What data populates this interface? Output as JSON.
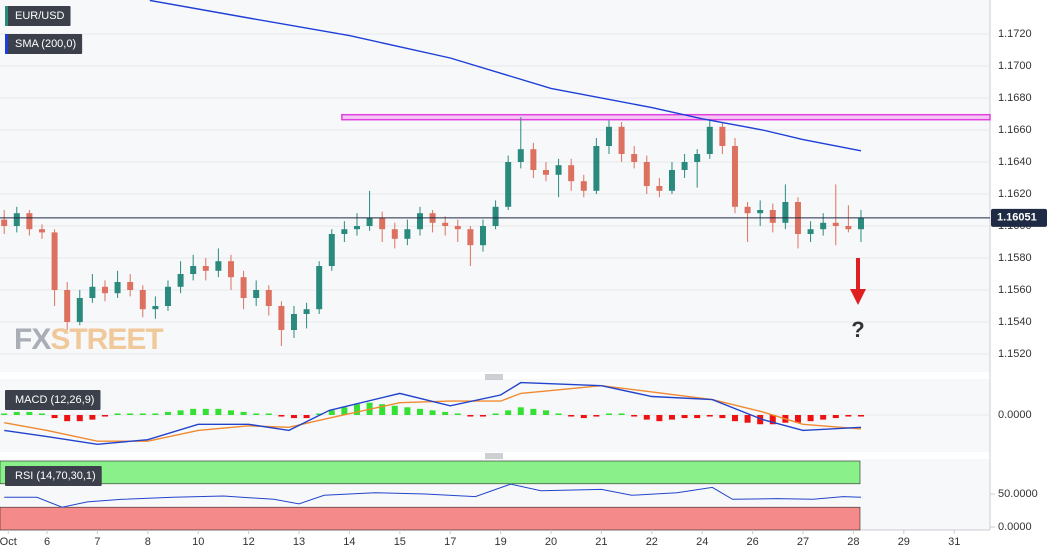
{
  "chart_data": [
    {
      "type": "candlestick",
      "name": "EUR/USD",
      "up_color": "#2b8a7e",
      "down_color": "#dd7160",
      "x": [
        -0.85,
        -0.6,
        -0.35,
        -0.1,
        0.15,
        0.4,
        0.65,
        0.9,
        1.15,
        1.4,
        1.65,
        1.9,
        2.15,
        2.4,
        2.65,
        2.9,
        3.15,
        3.4,
        3.65,
        3.9,
        4.15,
        4.4,
        4.65,
        4.9,
        5.15,
        5.4,
        5.65,
        5.9,
        6.15,
        6.4,
        6.65,
        6.9,
        7.15,
        7.4,
        7.65,
        7.9,
        8.15,
        8.4,
        8.65,
        8.9,
        9.15,
        9.4,
        9.65,
        9.9,
        10.15,
        10.4,
        10.65,
        10.9,
        11.15,
        11.4,
        11.65,
        11.9,
        12.15,
        12.4,
        12.65,
        12.9,
        13.15,
        13.4,
        13.65,
        13.9,
        14.15,
        14.4,
        14.65,
        14.9,
        15.15,
        15.4,
        15.65,
        15.9,
        16.15
      ],
      "open": [
        1.1604,
        1.16,
        1.1608,
        1.1598,
        1.1596,
        1.156,
        1.154,
        1.1555,
        1.1562,
        1.1558,
        1.1565,
        1.156,
        1.1548,
        1.155,
        1.1562,
        1.157,
        1.1575,
        1.1572,
        1.1578,
        1.1568,
        1.1555,
        1.156,
        1.155,
        1.1535,
        1.1545,
        1.1548,
        1.1575,
        1.1595,
        1.1598,
        1.16,
        1.1605,
        1.1598,
        1.1592,
        1.1598,
        1.1608,
        1.1602,
        1.16,
        1.1598,
        1.1588,
        1.16,
        1.1612,
        1.164,
        1.1648,
        1.1635,
        1.1632,
        1.1638,
        1.1628,
        1.1622,
        1.165,
        1.1662,
        1.1645,
        1.164,
        1.1625,
        1.1622,
        1.1635,
        1.164,
        1.1645,
        1.1662,
        1.165,
        1.1612,
        1.1608,
        1.161,
        1.1602,
        1.1615,
        1.1595,
        1.1598,
        1.1602,
        1.16,
        1.1598
      ],
      "high": [
        1.161,
        1.1612,
        1.161,
        1.1601,
        1.1598,
        1.1565,
        1.156,
        1.157,
        1.1566,
        1.1572,
        1.157,
        1.1563,
        1.1556,
        1.1566,
        1.1578,
        1.1582,
        1.158,
        1.1586,
        1.1582,
        1.1572,
        1.1566,
        1.1563,
        1.1553,
        1.155,
        1.1552,
        1.1578,
        1.1598,
        1.1603,
        1.1608,
        1.1622,
        1.1609,
        1.1602,
        1.1604,
        1.1612,
        1.161,
        1.1606,
        1.1604,
        1.16,
        1.1604,
        1.1616,
        1.1644,
        1.1668,
        1.1652,
        1.164,
        1.1642,
        1.1642,
        1.1632,
        1.1655,
        1.1666,
        1.1665,
        1.165,
        1.1644,
        1.163,
        1.164,
        1.1645,
        1.1648,
        1.1666,
        1.1665,
        1.1655,
        1.1615,
        1.1616,
        1.1614,
        1.1626,
        1.1618,
        1.1603,
        1.1608,
        1.1626,
        1.1613,
        1.161
      ],
      "low": [
        1.1595,
        1.1596,
        1.1594,
        1.1592,
        1.155,
        1.1535,
        1.1538,
        1.1552,
        1.1553,
        1.1555,
        1.1556,
        1.1543,
        1.1542,
        1.1547,
        1.1558,
        1.1566,
        1.1566,
        1.1568,
        1.156,
        1.1548,
        1.155,
        1.1544,
        1.1525,
        1.153,
        1.1536,
        1.1545,
        1.1572,
        1.159,
        1.1594,
        1.1597,
        1.159,
        1.1586,
        1.1588,
        1.1594,
        1.1596,
        1.1594,
        1.159,
        1.1575,
        1.1584,
        1.1598,
        1.161,
        1.1636,
        1.163,
        1.1628,
        1.1618,
        1.1622,
        1.1618,
        1.162,
        1.1645,
        1.164,
        1.1636,
        1.162,
        1.1618,
        1.162,
        1.163,
        1.1624,
        1.1642,
        1.1645,
        1.1608,
        1.159,
        1.16,
        1.1596,
        1.1598,
        1.1586,
        1.159,
        1.1594,
        1.1588,
        1.1596,
        1.159
      ],
      "close": [
        1.16,
        1.1608,
        1.1598,
        1.1596,
        1.156,
        1.154,
        1.1555,
        1.1562,
        1.1558,
        1.1565,
        1.156,
        1.1548,
        1.155,
        1.1562,
        1.157,
        1.1575,
        1.1572,
        1.1578,
        1.1568,
        1.1555,
        1.156,
        1.155,
        1.1535,
        1.1545,
        1.1548,
        1.1575,
        1.1595,
        1.1598,
        1.16,
        1.1605,
        1.1598,
        1.1592,
        1.1598,
        1.1608,
        1.1602,
        1.16,
        1.1598,
        1.1588,
        1.16,
        1.1612,
        1.164,
        1.1648,
        1.1635,
        1.1632,
        1.1638,
        1.1628,
        1.1622,
        1.165,
        1.1662,
        1.1645,
        1.164,
        1.1625,
        1.1622,
        1.1635,
        1.164,
        1.1645,
        1.1662,
        1.165,
        1.1612,
        1.1608,
        1.161,
        1.1602,
        1.1615,
        1.1595,
        1.1598,
        1.1602,
        1.16,
        1.1598,
        1.1605
      ],
      "sma": {
        "name": "SMA (200,0)",
        "color": "#1d3fd8",
        "x": [
          2.04,
          4,
          6,
          8,
          10,
          12,
          13,
          14.2,
          15,
          16.15
        ],
        "values": [
          1.1741,
          1.173,
          1.1719,
          1.1705,
          1.1686,
          1.1674,
          1.1667,
          1.166,
          1.1654,
          1.1647
        ]
      },
      "resistance": {
        "value": 1.1668,
        "x_from": 5.85,
        "color": "#e040e0"
      },
      "last": 1.16051,
      "last_color": "#1f2a44",
      "annotation": "?",
      "annotation_color": "#e02020",
      "watermark": [
        "FX",
        "STREET"
      ],
      "xlim": [
        -0.933,
        18.71
      ],
      "ylim": [
        1.150875,
        1.174125
      ],
      "yticks": [
        {
          "value": 1.152,
          "label": "1.1520"
        },
        {
          "value": 1.154,
          "label": "1.1540"
        },
        {
          "value": 1.156,
          "label": "1.1560"
        },
        {
          "value": 1.158,
          "label": "1.1580"
        },
        {
          "value": 1.16,
          "label": "1.1600"
        },
        {
          "value": 1.162,
          "label": "1.1620"
        },
        {
          "value": 1.164,
          "label": "1.1640"
        },
        {
          "value": 1.166,
          "label": "1.1660"
        },
        {
          "value": 1.168,
          "label": "1.1680"
        },
        {
          "value": 1.17,
          "label": "1.1700"
        },
        {
          "value": 1.172,
          "label": "1.1720"
        }
      ],
      "grid": true
    },
    {
      "type": "macd",
      "name": "MACD (12,26,9)",
      "pos_color": "#33e033",
      "neg_color": "#ee1111",
      "histogram": [
        0.0001,
        0.0002,
        0.0002,
        0.0001,
        -0.0002,
        -0.0004,
        -0.0004,
        -0.0003,
        -0.0001,
        0.0001,
        0.0001,
        0.0001,
        0.0001,
        0.0002,
        0.0003,
        0.0004,
        0.0004,
        0.0004,
        0.0003,
        0.0002,
        0.0001,
        0.0001,
        -0.0001,
        -0.0002,
        -0.0002,
        0.0001,
        0.0003,
        0.0005,
        0.0007,
        0.0008,
        0.0007,
        0.0006,
        0.0005,
        0.0004,
        0.0003,
        0.0002,
        0.0001,
        -0.0001,
        -0.0001,
        0.0001,
        0.0003,
        0.0005,
        0.0004,
        0.0003,
        0.0001,
        -0.0001,
        -0.0002,
        -0.0001,
        0.0001,
        0.0001,
        -0.0001,
        -0.0003,
        -0.0004,
        -0.0003,
        -0.0002,
        -0.0002,
        -0.0001,
        -0.0002,
        -0.0004,
        -0.0005,
        -0.0006,
        -0.0006,
        -0.0005,
        -0.0005,
        -0.0004,
        -0.0003,
        -0.0002,
        -0.0001,
        -0.0001
      ],
      "macd": {
        "color": "#2244cc",
        "x": [
          -0.85,
          0,
          1,
          2,
          3,
          4,
          4.8,
          5.6,
          7,
          8,
          9,
          9.4,
          11,
          12,
          13.2,
          14.2,
          15,
          16.15
        ],
        "values": [
          -0.001,
          -0.0014,
          -0.0019,
          -0.0016,
          -0.0006,
          -0.0006,
          -0.001,
          0.0003,
          0.0014,
          0.0006,
          0.0013,
          0.0021,
          0.0019,
          0.0012,
          0.001,
          -0.0003,
          -0.001,
          -0.0008
        ]
      },
      "signal": {
        "color": "#f08a30",
        "x": [
          -0.85,
          0,
          1,
          2,
          3,
          4,
          4.8,
          5.6,
          7,
          8,
          9,
          9.4,
          11,
          12,
          13.2,
          14.2,
          15,
          16.15
        ],
        "values": [
          -0.0005,
          -0.001,
          -0.0017,
          -0.0017,
          -0.001,
          -0.0007,
          -0.0008,
          -0.0002,
          0.0008,
          0.0009,
          0.0009,
          0.0014,
          0.0019,
          0.0015,
          0.001,
          0.0002,
          -0.0006,
          -0.0009
        ]
      },
      "xlim": [
        -0.933,
        18.71
      ],
      "ylim": [
        -0.0024,
        0.0024
      ],
      "yticks": [
        {
          "value": 0,
          "label": "0.0000"
        }
      ]
    },
    {
      "type": "rsi",
      "name": "RSI (14,70,30,1)",
      "color": "#2244cc",
      "x": [
        -0.85,
        -0.2,
        0.3,
        0.8,
        1.5,
        2.5,
        3.5,
        4.5,
        5,
        5.5,
        6.5,
        7.5,
        8.5,
        9.2,
        9.8,
        11,
        11.6,
        12.5,
        13.2,
        13.6,
        14.5,
        15.2,
        15.8,
        16.15
      ],
      "values": [
        45,
        45,
        30,
        38,
        42,
        45,
        47,
        42,
        35,
        48,
        52,
        50,
        46,
        65,
        55,
        57,
        48,
        52,
        60,
        42,
        43,
        42,
        46,
        45
      ],
      "bands": [
        {
          "from": 70,
          "to": 100,
          "color": "#8af08a"
        },
        {
          "from": 0,
          "to": 30,
          "color": "#f58a8a"
        }
      ],
      "xlim": [
        -0.933,
        18.71
      ],
      "ylim": [
        0,
        100
      ],
      "yticks": [
        {
          "value": 50,
          "label": "50.0000"
        },
        {
          "value": 0,
          "label": "0.0000"
        }
      ],
      "xticks": [
        {
          "value": -0.77,
          "label": "Oct"
        },
        {
          "value": 0,
          "label": "6"
        },
        {
          "value": 1,
          "label": "7"
        },
        {
          "value": 2,
          "label": "8"
        },
        {
          "value": 3,
          "label": "10"
        },
        {
          "value": 4,
          "label": "12"
        },
        {
          "value": 5,
          "label": "13"
        },
        {
          "value": 6,
          "label": "14"
        },
        {
          "value": 7,
          "label": "15"
        },
        {
          "value": 8,
          "label": "17"
        },
        {
          "value": 9,
          "label": "19"
        },
        {
          "value": 10,
          "label": "20"
        },
        {
          "value": 11,
          "label": "21"
        },
        {
          "value": 12,
          "label": "22"
        },
        {
          "value": 13,
          "label": "24"
        },
        {
          "value": 14,
          "label": "26"
        },
        {
          "value": 15,
          "label": "27"
        },
        {
          "value": 16,
          "label": "28"
        },
        {
          "value": 17,
          "label": "29"
        },
        {
          "value": 18,
          "label": "31"
        }
      ]
    }
  ]
}
